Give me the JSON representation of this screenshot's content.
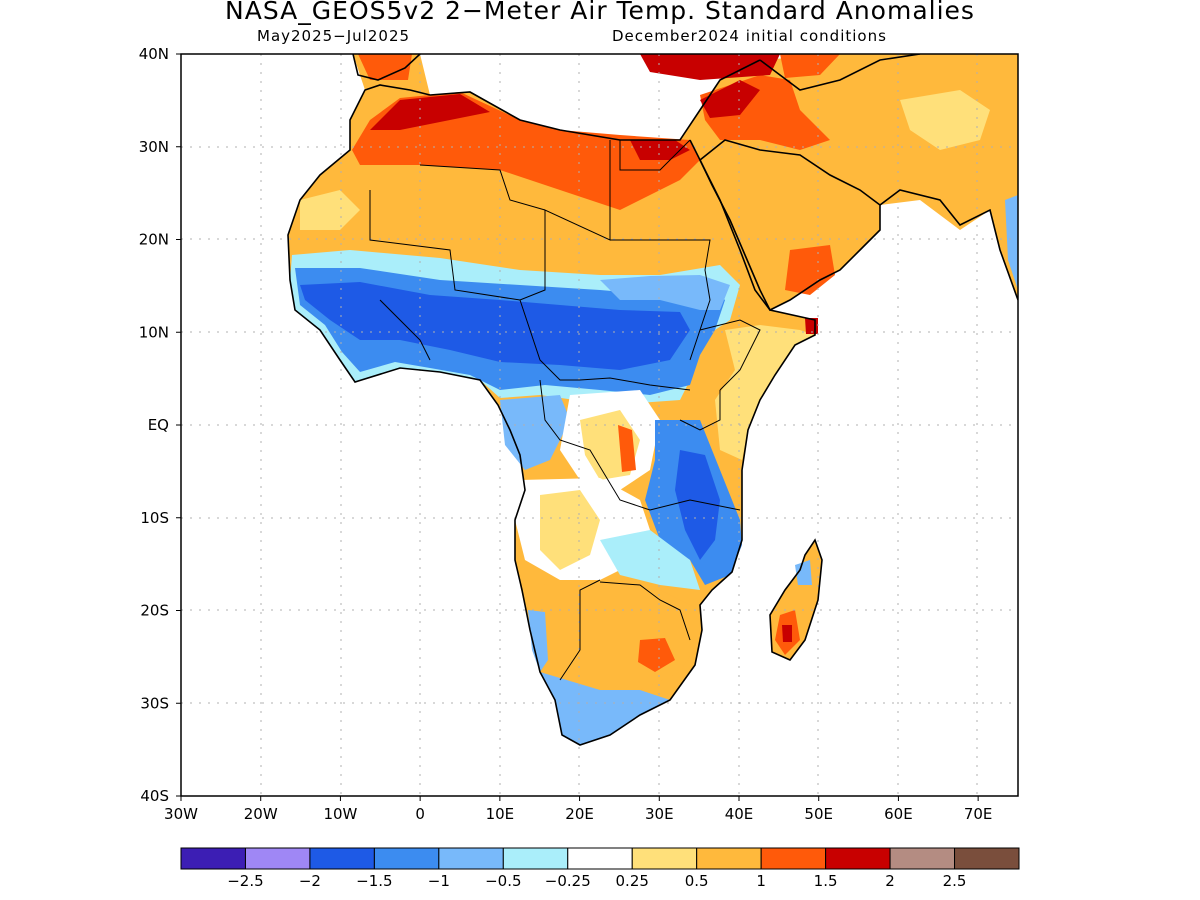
{
  "title": "NASA_GEOS5v2 2−Meter Air Temp. Standard Anomalies",
  "subtitle_left": "May2025−Jul2025",
  "subtitle_right": "December2024 initial conditions",
  "axes": {
    "lon_ticks": [
      "30W",
      "20W",
      "10W",
      "0",
      "10E",
      "20E",
      "30E",
      "40E",
      "50E",
      "60E",
      "70E"
    ],
    "lat_ticks": [
      "40N",
      "30N",
      "20N",
      "10N",
      "EQ",
      "10S",
      "20S",
      "30S",
      "40S"
    ],
    "lon_range": [
      -30,
      75
    ],
    "lat_range": [
      -40,
      40
    ]
  },
  "legend": {
    "colors": [
      "#3c1eb4",
      "#9f87f5",
      "#1e5ae6",
      "#3c8cf0",
      "#78b9fa",
      "#aaeefa",
      "#ffffff",
      "#ffe07a",
      "#ffb93c",
      "#ff5a0a",
      "#c80000",
      "#b48c82",
      "#7a4e3c"
    ],
    "labels": [
      "−2.5",
      "−2",
      "−1.5",
      "−1",
      "−0.5",
      "−0.25",
      "0.25",
      "0.5",
      "1",
      "1.5",
      "2",
      "2.5"
    ]
  }
}
